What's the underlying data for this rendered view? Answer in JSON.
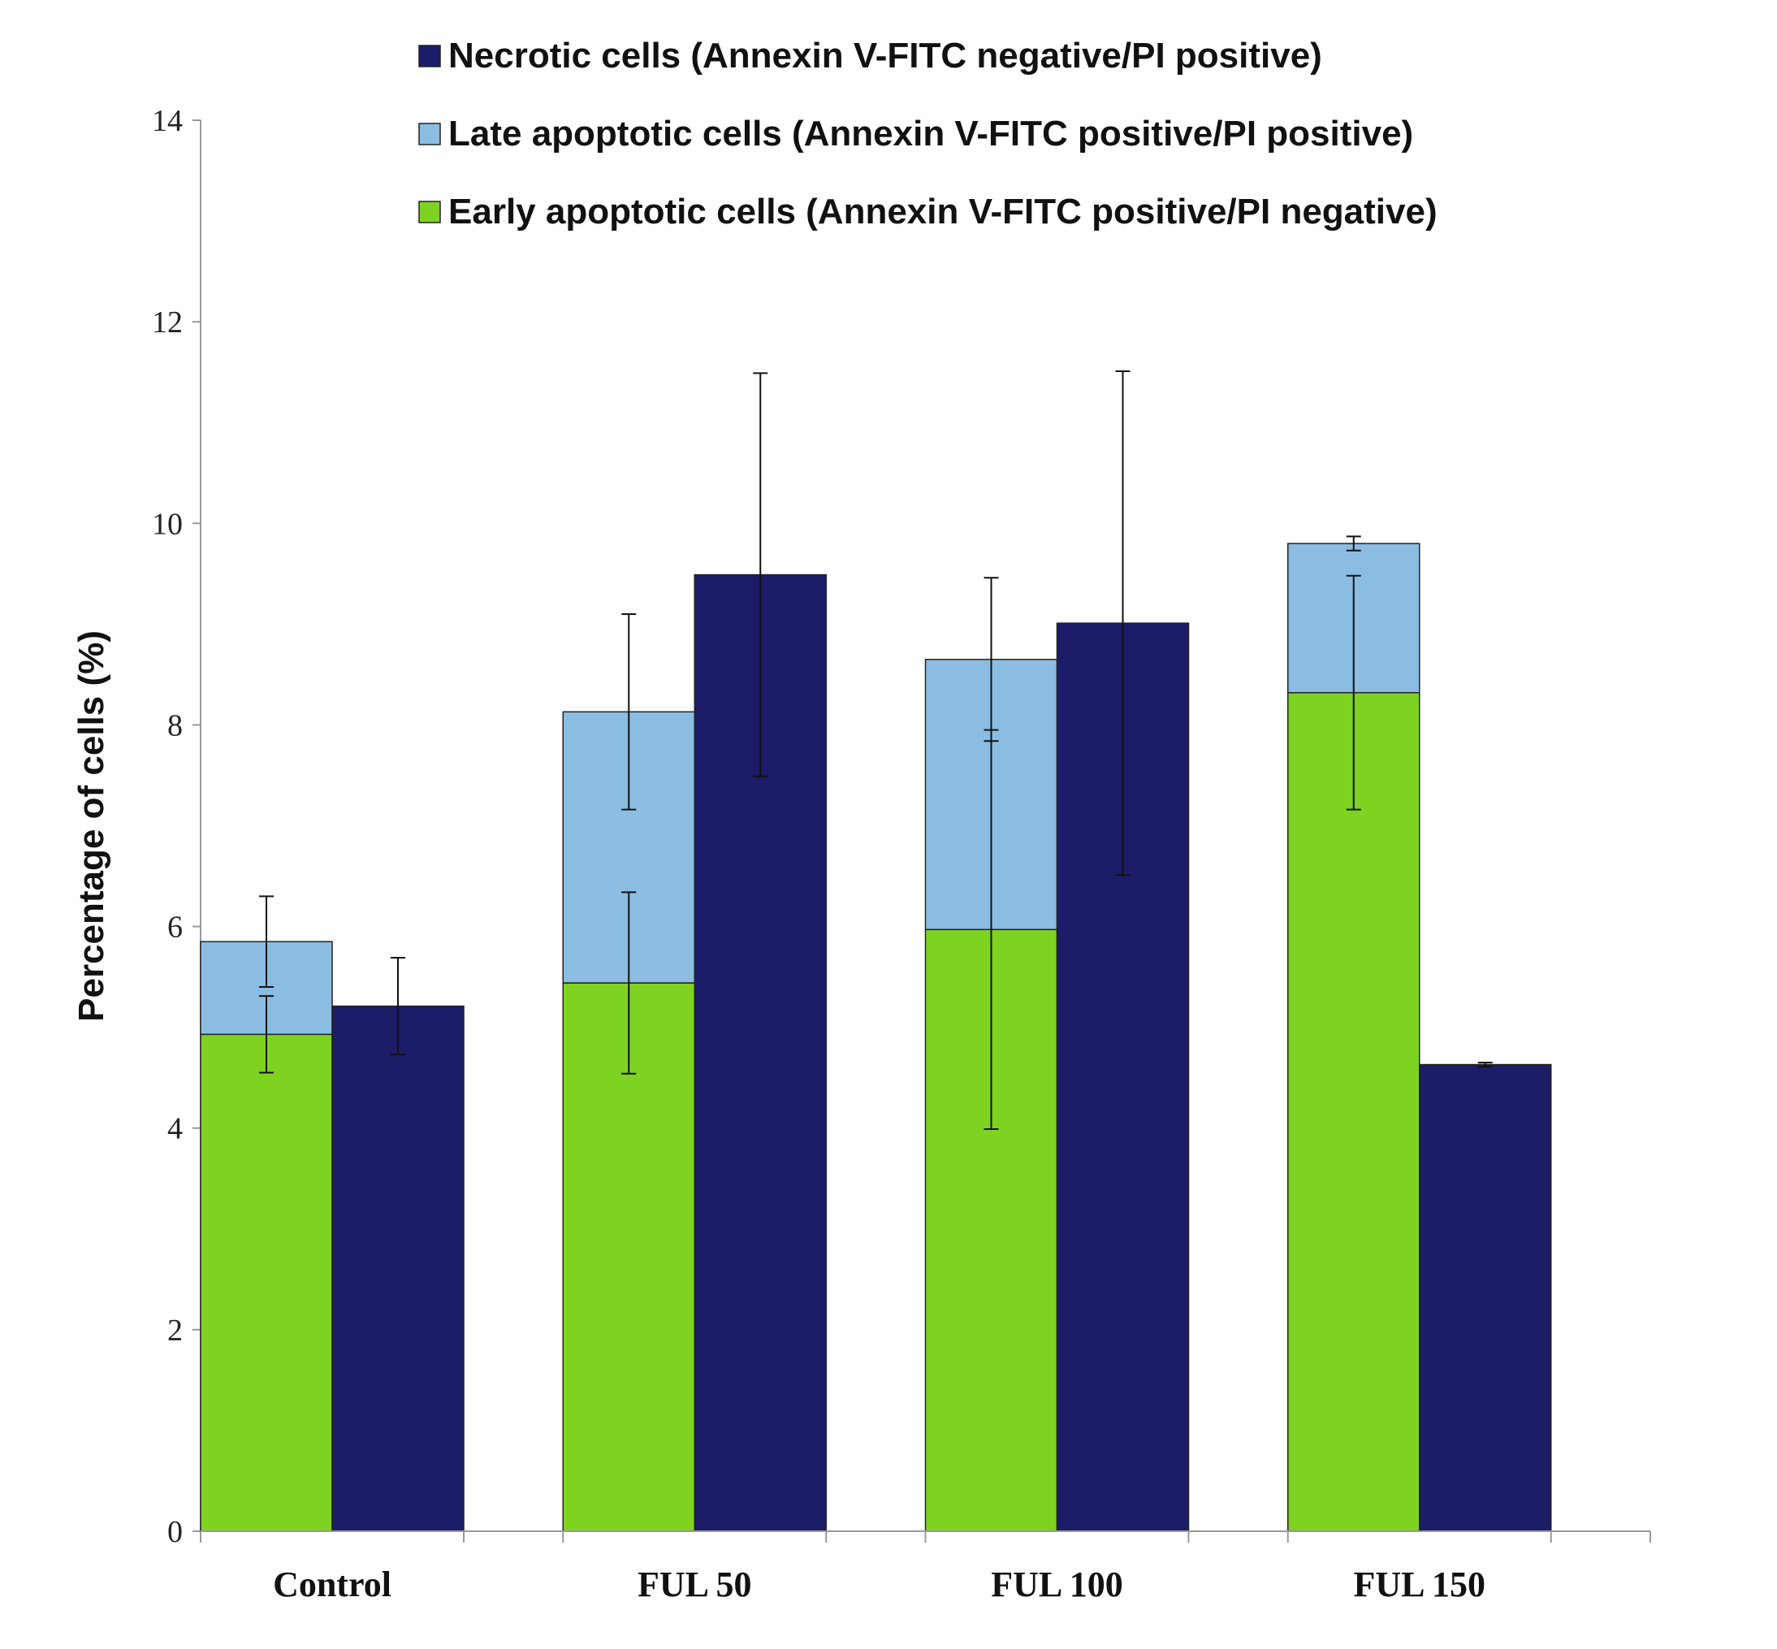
{
  "chart_data": {
    "type": "bar",
    "title": "",
    "xlabel": "",
    "ylabel": "Percentage of cells (%)",
    "ylim": [
      0,
      14
    ],
    "yticks": [
      "0",
      "2",
      "4",
      "6",
      "8",
      "10",
      "12",
      "14"
    ],
    "categories": [
      "Control",
      "FUL 50",
      "FUL 100",
      "FUL 150"
    ],
    "grid": false,
    "legend_position": "top",
    "series": [
      {
        "name": "Early apoptotic cells (Annexin V-FITC positive/PI negative)",
        "color": "#7ed321",
        "stack": "apoptotic",
        "values": [
          4.93,
          5.44,
          5.97,
          8.32
        ],
        "error": [
          0.38,
          0.9,
          1.98,
          1.16
        ]
      },
      {
        "name": "Late apoptotic cells (Annexin V-FITC positive/PI positive)",
        "color": "#8bbde3",
        "stack": "apoptotic",
        "values": [
          0.92,
          2.69,
          2.68,
          1.48
        ],
        "error": [
          0.45,
          0.97,
          0.81,
          0.07
        ]
      },
      {
        "name": "Necrotic cells (Annexin V-FITC negative/PI positive)",
        "color": "#1c1c68",
        "stack": "necrotic",
        "values": [
          5.21,
          9.49,
          9.01,
          4.63
        ],
        "error": [
          0.48,
          2.0,
          2.5,
          0.02
        ]
      }
    ],
    "legend_order": [
      "Necrotic cells (Annexin V-FITC negative/PI positive)",
      "Late apoptotic cells (Annexin V-FITC positive/PI positive)",
      "Early apoptotic cells (Annexin V-FITC positive/PI negative)"
    ]
  }
}
